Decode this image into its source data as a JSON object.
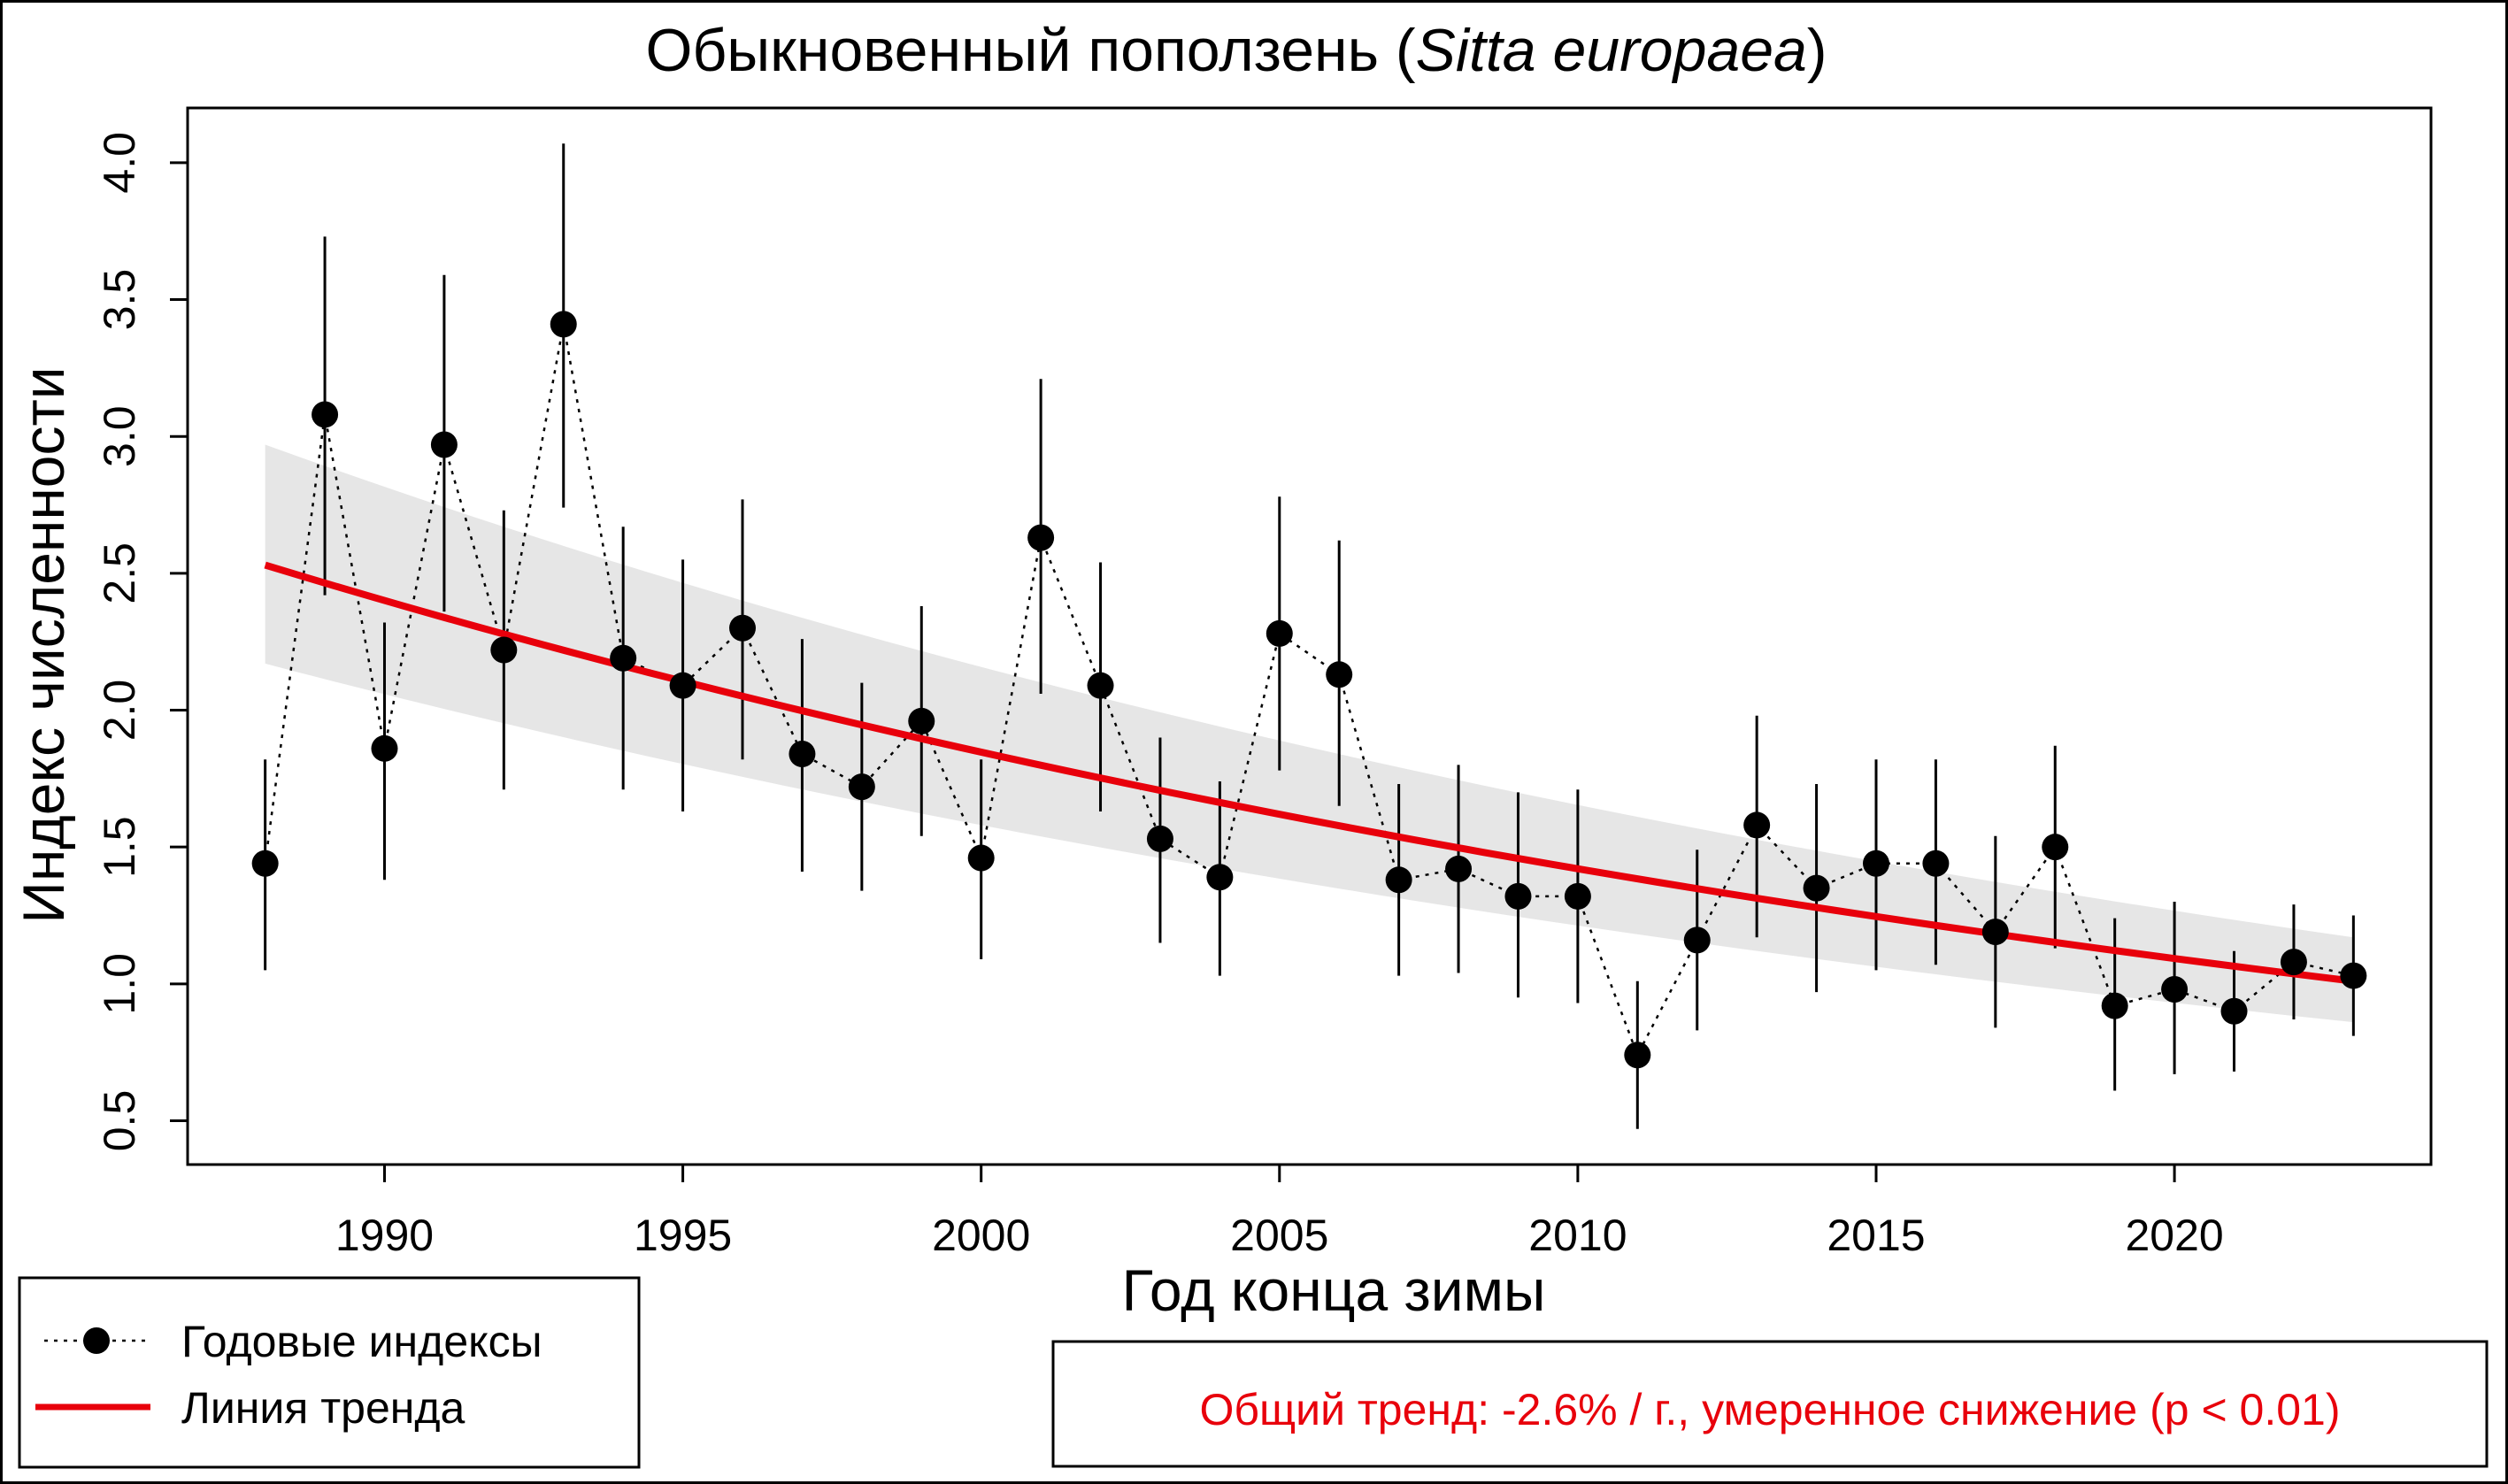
{
  "chart_data": {
    "type": "line",
    "title_main": "Обыкновенный поползень (",
    "title_italic": "Sitta europaea",
    "title_end": ")",
    "xlabel": "Год конца зимы",
    "ylabel": "Индекс численности",
    "xlim": [
      1986.7,
      2024.3
    ],
    "ylim": [
      0.34,
      4.2
    ],
    "x_ticks": [
      1990,
      1995,
      2000,
      2005,
      2010,
      2015,
      2020
    ],
    "y_ticks": [
      0.5,
      1.0,
      1.5,
      2.0,
      2.5,
      3.0,
      3.5,
      4.0
    ],
    "y_tick_labels": [
      "0.5",
      "1.0",
      "1.5",
      "2.0",
      "2.5",
      "3.0",
      "3.5",
      "4.0"
    ],
    "series": [
      {
        "name": "Годовые индексы",
        "color": "#000000",
        "x": [
          1988,
          1989,
          1990,
          1991,
          1992,
          1993,
          1994,
          1995,
          1996,
          1997,
          1998,
          1999,
          2000,
          2001,
          2002,
          2003,
          2004,
          2005,
          2006,
          2007,
          2008,
          2009,
          2010,
          2011,
          2012,
          2013,
          2014,
          2015,
          2016,
          2017,
          2018,
          2019,
          2020,
          2021,
          2022,
          2023
        ],
        "y": [
          1.44,
          3.08,
          1.86,
          2.97,
          2.22,
          3.41,
          2.19,
          2.09,
          2.3,
          1.84,
          1.72,
          1.96,
          1.46,
          2.63,
          2.09,
          1.53,
          1.39,
          2.28,
          2.13,
          1.38,
          1.42,
          1.32,
          1.32,
          0.74,
          1.16,
          1.58,
          1.35,
          1.44,
          1.44,
          1.19,
          1.5,
          0.92,
          0.98,
          0.9,
          1.08,
          1.03
        ],
        "lower": [
          1.05,
          2.42,
          1.38,
          2.36,
          1.71,
          2.74,
          1.71,
          1.63,
          1.82,
          1.41,
          1.34,
          1.54,
          1.09,
          2.06,
          1.63,
          1.15,
          1.03,
          1.78,
          1.65,
          1.03,
          1.04,
          0.95,
          0.93,
          0.47,
          0.83,
          1.17,
          0.97,
          1.05,
          1.07,
          0.84,
          1.13,
          0.61,
          0.67,
          0.68,
          0.87,
          0.81
        ],
        "upper": [
          1.82,
          3.73,
          2.32,
          3.59,
          2.73,
          4.07,
          2.67,
          2.55,
          2.77,
          2.26,
          2.1,
          2.38,
          1.82,
          3.21,
          2.54,
          1.9,
          1.74,
          2.78,
          2.62,
          1.73,
          1.8,
          1.7,
          1.71,
          1.01,
          1.49,
          1.98,
          1.73,
          1.82,
          1.82,
          1.54,
          1.87,
          1.24,
          1.3,
          1.12,
          1.29,
          1.25
        ]
      },
      {
        "name": "Линия тренда",
        "color": "#e8000b",
        "x": [
          1988,
          2023
        ],
        "y": [
          2.53,
          1.01
        ],
        "band_upper": [
          2.97,
          1.17
        ],
        "band_lower": [
          2.17,
          0.86
        ]
      }
    ],
    "legend": [
      "Годовые индексы",
      "Линия тренда"
    ],
    "trend_text": "Общий тренд: -2.6% / г., умеренное снижение (p < 0.01)"
  }
}
